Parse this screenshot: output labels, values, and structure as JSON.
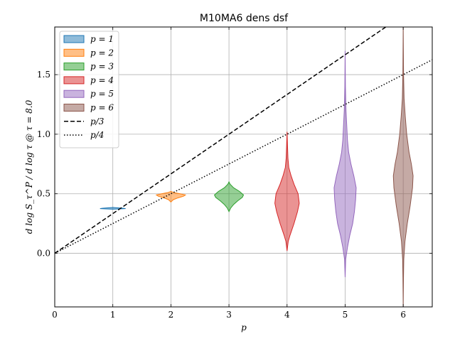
{
  "chart_data": {
    "type": "violin",
    "title": "M10MA6 dens dsf",
    "xlabel": "p",
    "ylabel": "d log S_τ^P / d log τ @ τ = 8.0",
    "xlim": [
      0,
      6.5
    ],
    "ylim": [
      -0.45,
      1.9
    ],
    "xticks": [
      "0",
      "1",
      "2",
      "3",
      "4",
      "5",
      "6"
    ],
    "yticks": [
      "0.0",
      "0.5",
      "1.0",
      "1.5"
    ],
    "grid": true,
    "legend_position": "top-left",
    "violins": [
      {
        "name": "p = 1",
        "p": 1,
        "color": "#1f77b4",
        "profile": [
          [
            0.37,
            0.0
          ],
          [
            0.372,
            0.1
          ],
          [
            0.375,
            0.22
          ],
          [
            0.378,
            0.18
          ],
          [
            0.382,
            0.08
          ],
          [
            0.385,
            0.0
          ]
        ]
      },
      {
        "name": "p = 2",
        "p": 2,
        "color": "#ff7f0e",
        "profile": [
          [
            0.43,
            0.0
          ],
          [
            0.45,
            0.04
          ],
          [
            0.465,
            0.12
          ],
          [
            0.48,
            0.22
          ],
          [
            0.49,
            0.25
          ],
          [
            0.5,
            0.16
          ],
          [
            0.51,
            0.05
          ],
          [
            0.52,
            0.0
          ]
        ]
      },
      {
        "name": "p = 3",
        "p": 3,
        "color": "#2ca02c",
        "profile": [
          [
            0.35,
            0.0
          ],
          [
            0.38,
            0.03
          ],
          [
            0.41,
            0.08
          ],
          [
            0.44,
            0.15
          ],
          [
            0.47,
            0.23
          ],
          [
            0.49,
            0.25
          ],
          [
            0.52,
            0.18
          ],
          [
            0.55,
            0.08
          ],
          [
            0.58,
            0.02
          ],
          [
            0.6,
            0.0
          ]
        ]
      },
      {
        "name": "p = 4",
        "p": 4,
        "color": "#d62728",
        "profile": [
          [
            0.02,
            0.0
          ],
          [
            0.1,
            0.02
          ],
          [
            0.15,
            0.05
          ],
          [
            0.25,
            0.12
          ],
          [
            0.35,
            0.18
          ],
          [
            0.42,
            0.21
          ],
          [
            0.5,
            0.19
          ],
          [
            0.58,
            0.12
          ],
          [
            0.65,
            0.07
          ],
          [
            0.72,
            0.03
          ],
          [
            0.8,
            0.015
          ],
          [
            0.9,
            0.008
          ],
          [
            1.02,
            0.0
          ]
        ]
      },
      {
        "name": "p = 5",
        "p": 5,
        "color": "#9467bd",
        "profile": [
          [
            -0.2,
            0.0
          ],
          [
            -0.05,
            0.01
          ],
          [
            0.05,
            0.04
          ],
          [
            0.15,
            0.08
          ],
          [
            0.25,
            0.13
          ],
          [
            0.35,
            0.16
          ],
          [
            0.45,
            0.18
          ],
          [
            0.55,
            0.19
          ],
          [
            0.65,
            0.15
          ],
          [
            0.75,
            0.1
          ],
          [
            0.85,
            0.06
          ],
          [
            0.95,
            0.04
          ],
          [
            1.05,
            0.03
          ],
          [
            1.2,
            0.015
          ],
          [
            1.4,
            0.005
          ],
          [
            1.7,
            0.0
          ]
        ]
      },
      {
        "name": "p = 6",
        "p": 6,
        "color": "#8c564b",
        "profile": [
          [
            -0.45,
            0.0
          ],
          [
            -0.2,
            0.005
          ],
          [
            -0.05,
            0.01
          ],
          [
            0.1,
            0.03
          ],
          [
            0.25,
            0.07
          ],
          [
            0.4,
            0.12
          ],
          [
            0.55,
            0.16
          ],
          [
            0.65,
            0.17
          ],
          [
            0.75,
            0.14
          ],
          [
            0.85,
            0.1
          ],
          [
            1.0,
            0.06
          ],
          [
            1.15,
            0.035
          ],
          [
            1.3,
            0.015
          ],
          [
            1.5,
            0.006
          ],
          [
            1.7,
            0.003
          ],
          [
            1.9,
            0.0
          ]
        ]
      }
    ],
    "lines": [
      {
        "name": "p/3",
        "slope": 0.3333333,
        "style": "dashed"
      },
      {
        "name": "p/4",
        "slope": 0.25,
        "style": "dotted"
      }
    ],
    "legend_labels": [
      "p = 1",
      "p = 2",
      "p = 3",
      "p = 4",
      "p = 5",
      "p = 6",
      "p/3",
      "p/4"
    ]
  }
}
